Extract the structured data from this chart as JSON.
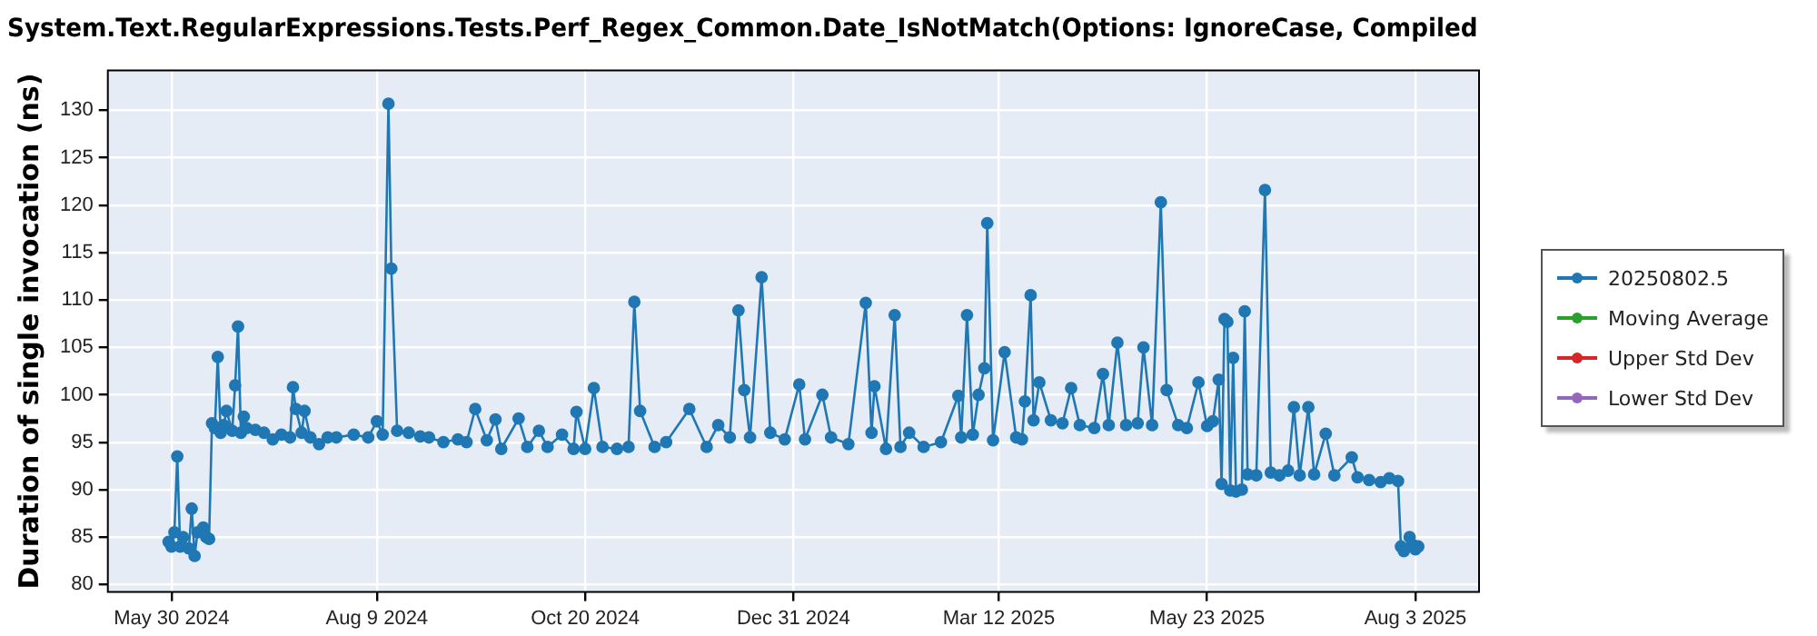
{
  "chart_data": {
    "type": "line",
    "title": "System.Text.RegularExpressions.Tests.Perf_Regex_Common.Date_IsNotMatch(Options: IgnoreCase, Compiled",
    "ylabel": "Duration of single invocation (ns)",
    "xlim": [
      "2024-05-08",
      "2025-08-25"
    ],
    "xticks": [
      {
        "value": "2024-05-30",
        "label": "May 30 2024"
      },
      {
        "value": "2024-08-09",
        "label": "Aug 9 2024"
      },
      {
        "value": "2024-10-20",
        "label": "Oct 20 2024"
      },
      {
        "value": "2024-12-31",
        "label": "Dec 31 2024"
      },
      {
        "value": "2025-03-12",
        "label": "Mar 12 2025"
      },
      {
        "value": "2025-05-23",
        "label": "May 23 2025"
      },
      {
        "value": "2025-08-03",
        "label": "Aug 3 2025"
      }
    ],
    "ylim": [
      79.2,
      134.2
    ],
    "yticks": [
      80,
      85,
      90,
      95,
      100,
      105,
      110,
      115,
      120,
      125,
      130
    ],
    "grid": true,
    "legend": "right",
    "marker": "circle",
    "line_style": "solid",
    "series": [
      {
        "name": "20250802.5",
        "color": "#1f77b4",
        "x": [
          "2024-05-29",
          "2024-05-30",
          "2024-05-31",
          "2024-06-01",
          "2024-06-02",
          "2024-06-03",
          "2024-06-05",
          "2024-06-06",
          "2024-06-07",
          "2024-06-08",
          "2024-06-10",
          "2024-06-11",
          "2024-06-12",
          "2024-06-13",
          "2024-06-14",
          "2024-06-15",
          "2024-06-16",
          "2024-06-17",
          "2024-06-18",
          "2024-06-20",
          "2024-06-21",
          "2024-06-22",
          "2024-06-23",
          "2024-06-24",
          "2024-06-25",
          "2024-06-28",
          "2024-07-01",
          "2024-07-04",
          "2024-07-07",
          "2024-07-10",
          "2024-07-11",
          "2024-07-12",
          "2024-07-14",
          "2024-07-15",
          "2024-07-17",
          "2024-07-20",
          "2024-07-23",
          "2024-07-26",
          "2024-08-01",
          "2024-08-06",
          "2024-08-09",
          "2024-08-11",
          "2024-08-13",
          "2024-08-14",
          "2024-08-16",
          "2024-08-20",
          "2024-08-24",
          "2024-08-27",
          "2024-09-01",
          "2024-09-06",
          "2024-09-09",
          "2024-09-12",
          "2024-09-16",
          "2024-09-19",
          "2024-09-21",
          "2024-09-27",
          "2024-09-30",
          "2024-10-04",
          "2024-10-07",
          "2024-10-12",
          "2024-10-16",
          "2024-10-17",
          "2024-10-20",
          "2024-10-23",
          "2024-10-26",
          "2024-10-31",
          "2024-11-04",
          "2024-11-06",
          "2024-11-08",
          "2024-11-13",
          "2024-11-17",
          "2024-11-25",
          "2024-12-01",
          "2024-12-05",
          "2024-12-09",
          "2024-12-12",
          "2024-12-14",
          "2024-12-16",
          "2024-12-20",
          "2024-12-23",
          "2024-12-28",
          "2025-01-02",
          "2025-01-04",
          "2025-01-10",
          "2025-01-13",
          "2025-01-19",
          "2025-01-25",
          "2025-01-27",
          "2025-01-28",
          "2025-02-01",
          "2025-02-04",
          "2025-02-06",
          "2025-02-09",
          "2025-02-14",
          "2025-02-20",
          "2025-02-26",
          "2025-02-27",
          "2025-03-01",
          "2025-03-03",
          "2025-03-05",
          "2025-03-07",
          "2025-03-08",
          "2025-03-10",
          "2025-03-14",
          "2025-03-18",
          "2025-03-20",
          "2025-03-21",
          "2025-03-23",
          "2025-03-24",
          "2025-03-26",
          "2025-03-30",
          "2025-04-03",
          "2025-04-06",
          "2025-04-09",
          "2025-04-14",
          "2025-04-17",
          "2025-04-19",
          "2025-04-22",
          "2025-04-25",
          "2025-04-29",
          "2025-05-01",
          "2025-05-04",
          "2025-05-07",
          "2025-05-09",
          "2025-05-13",
          "2025-05-16",
          "2025-05-20",
          "2025-05-23",
          "2025-05-25",
          "2025-05-27",
          "2025-05-28",
          "2025-05-29",
          "2025-05-30",
          "2025-05-31",
          "2025-06-01",
          "2025-06-02",
          "2025-06-04",
          "2025-06-05",
          "2025-06-06",
          "2025-06-09",
          "2025-06-12",
          "2025-06-14",
          "2025-06-17",
          "2025-06-20",
          "2025-06-22",
          "2025-06-24",
          "2025-06-27",
          "2025-06-29",
          "2025-07-03",
          "2025-07-06",
          "2025-07-12",
          "2025-07-14",
          "2025-07-18",
          "2025-07-22",
          "2025-07-25",
          "2025-07-28",
          "2025-07-29",
          "2025-07-30",
          "2025-08-01",
          "2025-08-02",
          "2025-08-03",
          "2025-08-04"
        ],
        "values": [
          84.5,
          84.0,
          85.5,
          93.5,
          84.0,
          85.0,
          83.8,
          88.0,
          83.0,
          85.5,
          86.0,
          85.0,
          84.8,
          97.0,
          96.5,
          104.0,
          96.0,
          96.8,
          98.3,
          96.2,
          101.0,
          107.2,
          96.0,
          97.7,
          96.5,
          96.3,
          96.0,
          95.3,
          95.8,
          95.5,
          100.8,
          98.5,
          96.0,
          98.3,
          95.5,
          94.8,
          95.5,
          95.5,
          95.8,
          95.5,
          97.2,
          95.8,
          130.7,
          113.3,
          96.2,
          96.0,
          95.6,
          95.5,
          95.0,
          95.3,
          95.0,
          98.5,
          95.2,
          97.4,
          94.3,
          97.5,
          94.5,
          96.2,
          94.5,
          95.8,
          94.3,
          98.2,
          94.3,
          100.7,
          94.5,
          94.3,
          94.5,
          109.8,
          98.3,
          94.5,
          95.0,
          98.5,
          94.5,
          96.8,
          95.5,
          108.9,
          100.5,
          95.5,
          112.4,
          96.0,
          95.3,
          101.1,
          95.3,
          100.0,
          95.5,
          94.8,
          109.7,
          96.0,
          100.9,
          94.3,
          108.4,
          94.5,
          96.0,
          94.5,
          95.0,
          99.9,
          95.5,
          108.4,
          95.8,
          100.0,
          102.8,
          118.1,
          95.2,
          104.5,
          95.5,
          95.3,
          99.3,
          110.5,
          97.3,
          101.3,
          97.3,
          97.0,
          100.7,
          96.8,
          96.5,
          102.2,
          96.8,
          105.5,
          96.8,
          97.0,
          105.0,
          96.8,
          120.3,
          100.5,
          96.8,
          96.5,
          101.3,
          96.7,
          97.2,
          101.6,
          90.6,
          108.0,
          107.7,
          89.9,
          103.9,
          89.8,
          90.0,
          108.8,
          91.6,
          91.5,
          121.6,
          91.8,
          91.5,
          92.0,
          98.7,
          91.5,
          98.7,
          91.6,
          95.9,
          91.5,
          93.4,
          91.3,
          91.0,
          90.8,
          91.2,
          90.9,
          84.0,
          83.5,
          85.0,
          84.2,
          83.7,
          84.0
        ]
      },
      {
        "name": "Moving Average",
        "color": "#2ca02c"
      },
      {
        "name": "Upper Std Dev",
        "color": "#d62728"
      },
      {
        "name": "Lower Std Dev",
        "color": "#9467bd"
      }
    ]
  }
}
